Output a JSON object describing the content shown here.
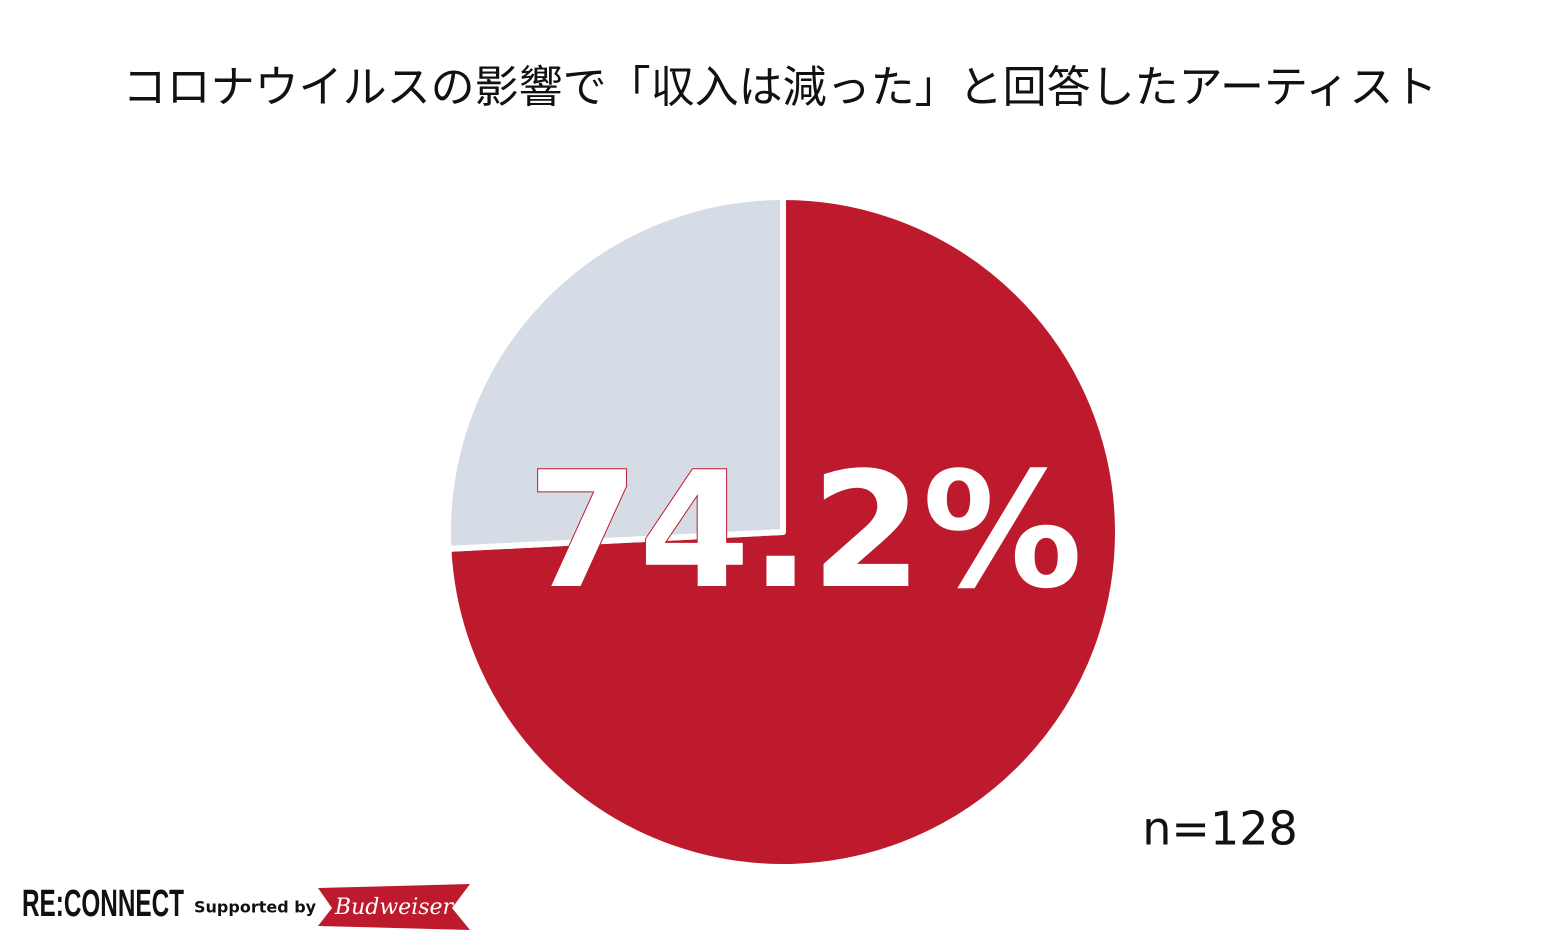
{
  "chart_data": {
    "type": "pie",
    "title": "コロナウイルスの影響で「収入は減った」と回答したアーティスト",
    "values": [
      74.2,
      25.8
    ],
    "value_labels": [
      "74.2%",
      null
    ],
    "colors": [
      "#be1a2e",
      "#d6dce5"
    ],
    "start_angle": 0,
    "direction": "clockwise",
    "annotation": "n=128"
  },
  "footer": {
    "logo": "RE:CONNECT",
    "supported": "Supported by",
    "brand": "Budweiser"
  }
}
